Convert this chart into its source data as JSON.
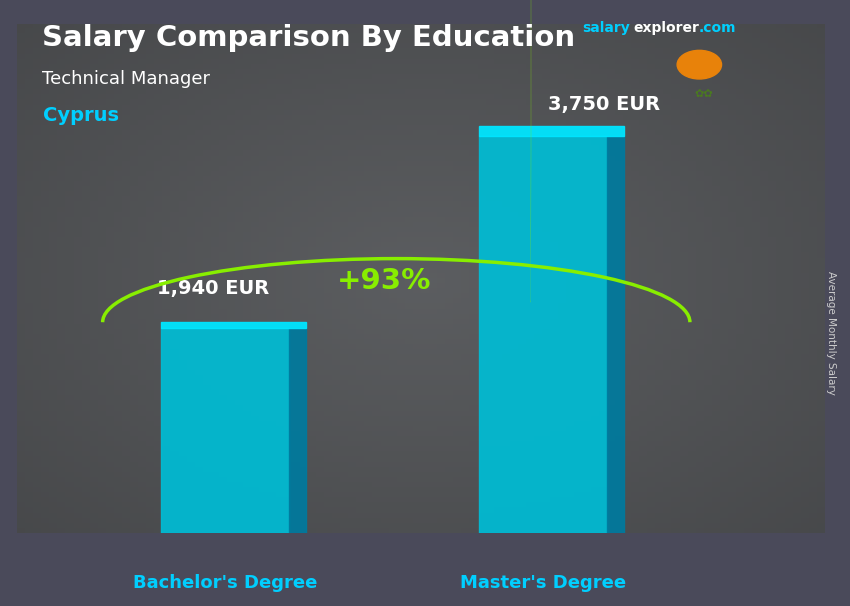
{
  "title_main": "Salary Comparison By Education",
  "subtitle": "Technical Manager",
  "country": "Cyprus",
  "categories": [
    "Bachelor's Degree",
    "Master's Degree"
  ],
  "values": [
    1940,
    3750
  ],
  "value_labels": [
    "1,940 EUR",
    "3,750 EUR"
  ],
  "pct_label": "+93%",
  "bar_face_color": "#00bcd4",
  "bar_side_color": "#007a9e",
  "bar_top_color": "#00e5ff",
  "bg_color": "#4a4a5a",
  "text_color_white": "#ffffff",
  "text_color_cyan": "#00cfff",
  "text_color_green": "#88ee00",
  "ylabel_text": "Average Monthly Salary",
  "ylim": [
    0,
    4800
  ],
  "salary_color": "#00cfff",
  "explorer_color": "#ffffff",
  "dotcom_color": "#00cfff"
}
